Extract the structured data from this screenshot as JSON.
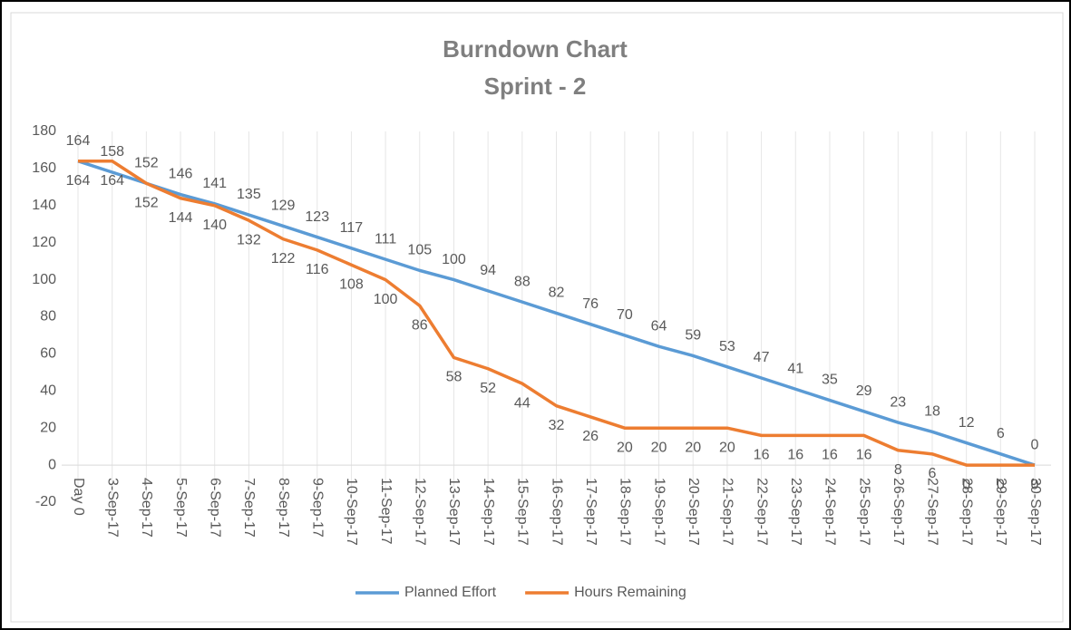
{
  "chart_data": {
    "type": "line",
    "title": "Burndown Chart",
    "subtitle": "Sprint - 2",
    "categories": [
      "Day 0",
      "3-Sep-17",
      "4-Sep-17",
      "5-Sep-17",
      "6-Sep-17",
      "7-Sep-17",
      "8-Sep-17",
      "9-Sep-17",
      "10-Sep-17",
      "11-Sep-17",
      "12-Sep-17",
      "13-Sep-17",
      "14-Sep-17",
      "15-Sep-17",
      "16-Sep-17",
      "17-Sep-17",
      "18-Sep-17",
      "19-Sep-17",
      "20-Sep-17",
      "21-Sep-17",
      "22-Sep-17",
      "23-Sep-17",
      "24-Sep-17",
      "25-Sep-17",
      "26-Sep-17",
      "27-Sep-17",
      "28-Sep-17",
      "29-Sep-17",
      "30-Sep-17"
    ],
    "series": [
      {
        "name": "Planned Effort",
        "color": "#5b9bd5",
        "values": [
          164,
          158,
          152,
          146,
          141,
          135,
          129,
          123,
          117,
          111,
          105,
          100,
          94,
          88,
          82,
          76,
          70,
          64,
          59,
          53,
          47,
          41,
          35,
          29,
          23,
          18,
          12,
          6,
          0
        ]
      },
      {
        "name": "Hours Remaining",
        "color": "#ed7d31",
        "values": [
          164,
          164,
          152,
          144,
          140,
          132,
          122,
          116,
          108,
          100,
          86,
          58,
          52,
          44,
          32,
          26,
          20,
          20,
          20,
          20,
          16,
          16,
          16,
          16,
          8,
          6,
          0,
          0,
          0
        ]
      }
    ],
    "ylim": [
      -20,
      180
    ],
    "yticks": [
      -20,
      0,
      20,
      40,
      60,
      80,
      100,
      120,
      140,
      160,
      180
    ],
    "grid": true,
    "legend": "bottom"
  }
}
